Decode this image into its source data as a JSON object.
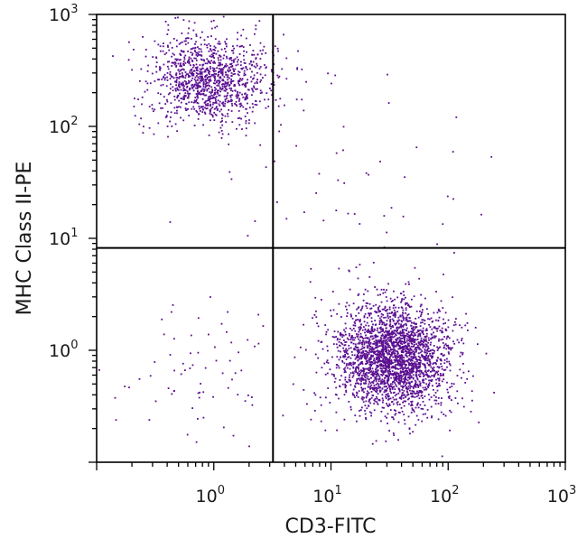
{
  "chart_data": {
    "type": "scatter",
    "title": "",
    "xlabel": "CD3-FITC",
    "ylabel": "MHC Class II-PE",
    "x_scale": "log",
    "y_scale": "log",
    "xlim": [
      0.1,
      1000
    ],
    "ylim": [
      0.1,
      1000
    ],
    "x_ticks": [
      {
        "base": "10",
        "exp": "0",
        "value": 1
      },
      {
        "base": "10",
        "exp": "1",
        "value": 10
      },
      {
        "base": "10",
        "exp": "2",
        "value": 100
      },
      {
        "base": "10",
        "exp": "3",
        "value": 1000
      }
    ],
    "y_ticks": [
      {
        "base": "10",
        "exp": "0",
        "value": 1
      },
      {
        "base": "10",
        "exp": "1",
        "value": 10
      },
      {
        "base": "10",
        "exp": "2",
        "value": 100
      },
      {
        "base": "10",
        "exp": "3",
        "value": 1000
      }
    ],
    "quadrant_gates": {
      "x": 3.2,
      "y": 8.2
    },
    "point_color": "#5b0f91",
    "populations": [
      {
        "center_x": 0.9,
        "center_y": 260,
        "spread_x_decades": 0.26,
        "spread_y_decades": 0.2,
        "count": 1150
      },
      {
        "center_x": 35,
        "center_y": 0.85,
        "spread_x_decades": 0.25,
        "spread_y_decades": 0.24,
        "count": 2600
      },
      {
        "center_x": 14,
        "center_y": 9,
        "spread_x_decades": 0.55,
        "spread_y_decades": 0.9,
        "count": 90
      },
      {
        "center_x": 0.8,
        "center_y": 0.55,
        "spread_x_decades": 0.35,
        "spread_y_decades": 0.3,
        "count": 70
      }
    ]
  }
}
